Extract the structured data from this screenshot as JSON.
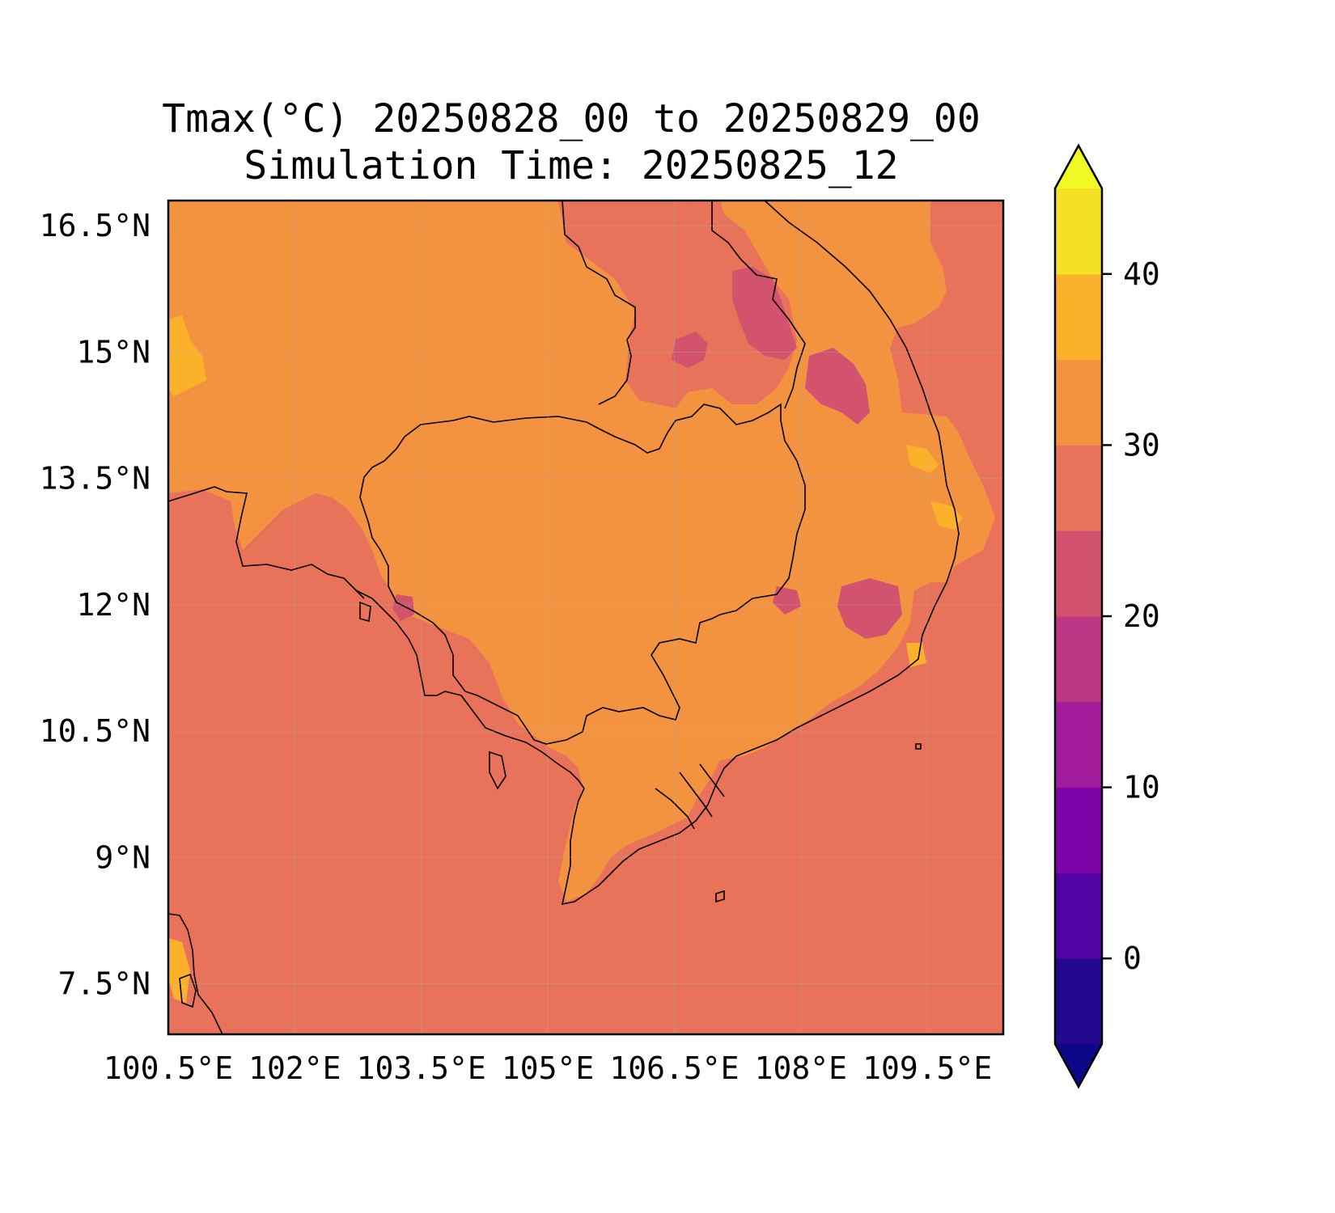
{
  "title_line1": "Tmax(°C) 20250828_00 to 20250829_00",
  "title_line2": "Simulation Time: 20250825_12",
  "map": {
    "lon_range": [
      100.5,
      110.4
    ],
    "lat_range": [
      6.9,
      16.8
    ],
    "grid": true,
    "x_ticks": [
      {
        "value": 100.5,
        "label": "100.5°E"
      },
      {
        "value": 102.0,
        "label": "102°E"
      },
      {
        "value": 103.5,
        "label": "103.5°E"
      },
      {
        "value": 105.0,
        "label": "105°E"
      },
      {
        "value": 106.5,
        "label": "106.5°E"
      },
      {
        "value": 108.0,
        "label": "108°E"
      },
      {
        "value": 109.5,
        "label": "109.5°E"
      }
    ],
    "y_ticks": [
      {
        "value": 16.5,
        "label": "16.5°N"
      },
      {
        "value": 15.0,
        "label": "15°N"
      },
      {
        "value": 13.5,
        "label": "13.5°N"
      },
      {
        "value": 12.0,
        "label": "12°N"
      },
      {
        "value": 10.5,
        "label": "10.5°N"
      },
      {
        "value": 9.0,
        "label": "9°N"
      },
      {
        "value": 7.5,
        "label": "7.5°N"
      }
    ],
    "colors": {
      "background_25_30": "#e8735a",
      "land_30_35": "#f39340",
      "cool_20_25": "#d3526d",
      "warm_35_40": "#fbb22a",
      "coast": "#000000",
      "grid": "#b0b0b0"
    }
  },
  "colorbar": {
    "vmin": -5,
    "vmax": 45,
    "extend": "both",
    "levels": [
      -5,
      0,
      5,
      10,
      15,
      20,
      25,
      30,
      35,
      40,
      45
    ],
    "colors": [
      "#24078f",
      "#5203a3",
      "#7e03a8",
      "#a11b9b",
      "#bd3786",
      "#d3526d",
      "#e8735a",
      "#f39340",
      "#fbb22a",
      "#f4e125"
    ],
    "under_color": "#0d0887",
    "over_color": "#f0f921",
    "ticks": [
      {
        "value": 0,
        "label": "0"
      },
      {
        "value": 10,
        "label": "10"
      },
      {
        "value": 20,
        "label": "20"
      },
      {
        "value": 30,
        "label": "30"
      },
      {
        "value": 40,
        "label": "40"
      }
    ]
  }
}
